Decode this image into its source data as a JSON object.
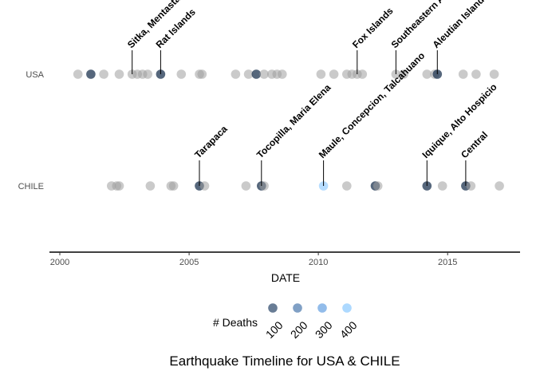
{
  "chart_data": {
    "type": "scatter",
    "title": "Earthquake Timeline for USA & CHILE",
    "xlabel": "DATE",
    "ylabel": "",
    "xlim": [
      1999.6,
      2017.8
    ],
    "x_ticks": [
      2000,
      2005,
      2010,
      2015
    ],
    "x_tick_labels": [
      "2000",
      "2005",
      "2010",
      "2015"
    ],
    "categories": [
      "USA",
      "CHILE"
    ],
    "grid": false,
    "legend": {
      "title": "# Deaths",
      "position": "bottom",
      "items": [
        {
          "label": "100",
          "value": 100,
          "color": "#4d6582"
        },
        {
          "label": "200",
          "value": 200,
          "color": "#6a8fbb"
        },
        {
          "label": "300",
          "value": 300,
          "color": "#7fb0e6"
        },
        {
          "label": "400",
          "value": 400,
          "color": "#9fd2ff"
        }
      ]
    },
    "colors": {
      "no_deaths": "#9e9e9e",
      "axis": "#000000"
    },
    "series": [
      {
        "country": "USA",
        "points": [
          {
            "x": 2000.7
          },
          {
            "x": 2001.2,
            "deaths": 30
          },
          {
            "x": 2001.7
          },
          {
            "x": 2002.3
          },
          {
            "x": 2002.8
          },
          {
            "x": 2003.0
          },
          {
            "x": 2003.2
          },
          {
            "x": 2003.4
          },
          {
            "x": 2003.9,
            "deaths": 5
          },
          {
            "x": 2004.7
          },
          {
            "x": 2005.4
          },
          {
            "x": 2005.5
          },
          {
            "x": 2006.8
          },
          {
            "x": 2007.3
          },
          {
            "x": 2007.6,
            "deaths": 8
          },
          {
            "x": 2007.9
          },
          {
            "x": 2008.2
          },
          {
            "x": 2008.4
          },
          {
            "x": 2008.6
          },
          {
            "x": 2010.1
          },
          {
            "x": 2010.6
          },
          {
            "x": 2011.1
          },
          {
            "x": 2011.3
          },
          {
            "x": 2011.5
          },
          {
            "x": 2011.7
          },
          {
            "x": 2013.0
          },
          {
            "x": 2013.3
          },
          {
            "x": 2014.2
          },
          {
            "x": 2014.5
          },
          {
            "x": 2014.6,
            "deaths": 10
          },
          {
            "x": 2015.6
          },
          {
            "x": 2016.1
          },
          {
            "x": 2016.8
          }
        ]
      },
      {
        "country": "CHILE",
        "points": [
          {
            "x": 2002.0
          },
          {
            "x": 2002.2
          },
          {
            "x": 2002.3
          },
          {
            "x": 2003.5
          },
          {
            "x": 2004.3
          },
          {
            "x": 2004.4
          },
          {
            "x": 2005.4,
            "deaths": 11
          },
          {
            "x": 2005.6
          },
          {
            "x": 2007.2
          },
          {
            "x": 2007.8,
            "deaths": 2
          },
          {
            "x": 2007.9
          },
          {
            "x": 2010.2,
            "deaths": 525
          },
          {
            "x": 2011.1
          },
          {
            "x": 2012.2,
            "deaths": 1
          },
          {
            "x": 2012.3
          },
          {
            "x": 2014.2,
            "deaths": 6
          },
          {
            "x": 2014.8
          },
          {
            "x": 2015.7,
            "deaths": 13
          },
          {
            "x": 2015.9
          },
          {
            "x": 2017.0
          }
        ]
      }
    ],
    "annotations": [
      {
        "country": "USA",
        "x": 2002.8,
        "text": "Sitka, Mentasta Lake"
      },
      {
        "country": "USA",
        "x": 2003.9,
        "text": "Rat Islands"
      },
      {
        "country": "USA",
        "x": 2011.5,
        "text": "Fox Islands"
      },
      {
        "country": "USA",
        "x": 2013.0,
        "text": "Southeastern Alaska"
      },
      {
        "country": "USA",
        "x": 2014.6,
        "text": "Aleutian Islands"
      },
      {
        "country": "CHILE",
        "x": 2005.4,
        "text": "Tarapaca"
      },
      {
        "country": "CHILE",
        "x": 2007.8,
        "text": "Tocopilla, Maria Elena"
      },
      {
        "country": "CHILE",
        "x": 2010.2,
        "text": "Maule, Concepcion, Talcahuano"
      },
      {
        "country": "CHILE",
        "x": 2014.2,
        "text": "Iquique, Alto Hospicio"
      },
      {
        "country": "CHILE",
        "x": 2015.7,
        "text": "Central"
      }
    ]
  }
}
